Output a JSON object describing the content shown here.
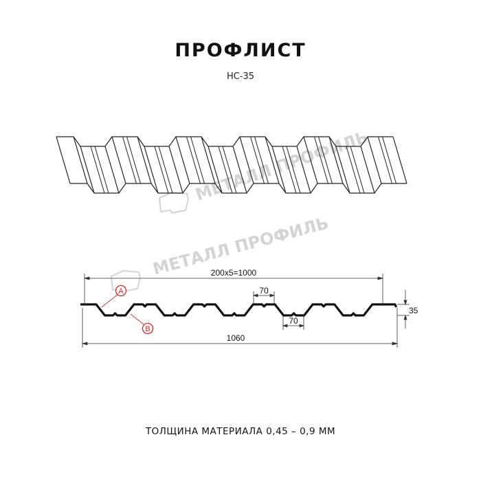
{
  "header": {
    "title": "ПРОФЛИСТ",
    "subtitle": "НС-35"
  },
  "watermark": {
    "text": "МЕТАЛЛ ПРОФИЛЬ",
    "color": "#d4d4d4"
  },
  "dimensions": {
    "pitch_total": "200x5=1000",
    "overall_width": "1060",
    "top_flange": "70",
    "bottom_flange": "70",
    "height": "35"
  },
  "callouts": {
    "a": "A",
    "b": "B",
    "color": "#e02020"
  },
  "footer": {
    "thickness": "ТОЛЩИНА МАТЕРИАЛА 0,45 – 0,9 ММ"
  }
}
